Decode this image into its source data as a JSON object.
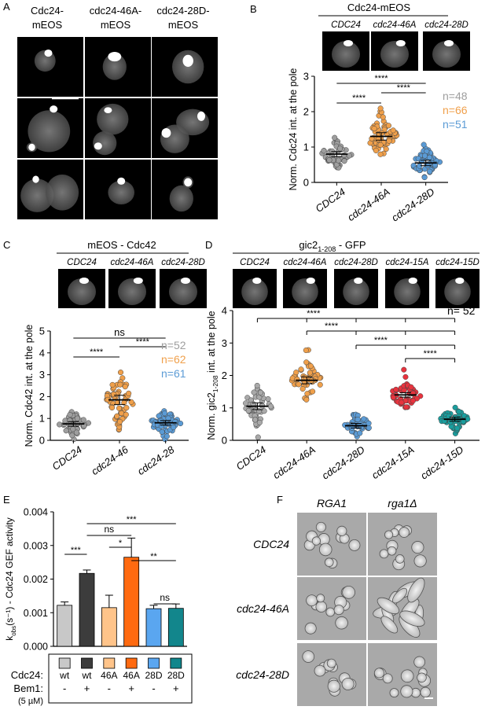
{
  "panels": {
    "A": {
      "letter": "A",
      "columns": [
        "Cdc24-\nmEOS",
        "cdc24-46A-\nmEOS",
        "cdc24-28D-\nmEOS"
      ]
    },
    "B": {
      "letter": "B",
      "header": "Cdc24-mEOS",
      "thumb_labels": [
        "CDC24",
        "cdc24-46A",
        "cdc24-28D"
      ],
      "n_labels": [
        "n=48",
        "n=66",
        "n=51"
      ],
      "sig": [
        "****",
        "****",
        "****"
      ]
    },
    "C": {
      "letter": "C",
      "header": "mEOS - Cdc42",
      "thumb_labels": [
        "CDC24",
        "cdc24-46A",
        "cdc24-28D"
      ],
      "n_labels": [
        "n=52",
        "n=62",
        "n=61"
      ],
      "sig": [
        "ns",
        "****",
        "****"
      ]
    },
    "D": {
      "letter": "D",
      "header": "gic2",
      "header_sub": "1-208",
      "header_tail": " - GFP",
      "thumb_labels": [
        "CDC24",
        "cdc24-46A",
        "cdc24-28D",
        "cdc24-15A",
        "cdc24-15D"
      ],
      "n_label": "n= 52",
      "sig": [
        "****",
        "****",
        "****",
        "****"
      ]
    },
    "E": {
      "letter": "E",
      "sig": [
        "***",
        "ns",
        "*",
        "***",
        "**",
        "ns"
      ],
      "table": {
        "row1_label": "Cdc24:",
        "row2_label": "Bem1:",
        "row3_label": "(5 µM)",
        "cdc24": [
          "wt",
          "wt",
          "46A",
          "46A",
          "28D",
          "28D"
        ],
        "bem1": [
          "-",
          "+",
          "-",
          "+",
          "-",
          "+"
        ]
      }
    },
    "F": {
      "letter": "F",
      "col_labels": [
        "RGA1",
        "rga1Δ"
      ],
      "row_labels": [
        "CDC24",
        "cdc24-46A",
        "cdc24-28D"
      ]
    }
  },
  "chart_data": [
    {
      "panel": "B",
      "type": "scatter",
      "ylabel": "Norm. Cdc24 int. at the pole",
      "ylim": [
        0,
        3
      ],
      "yticks": [
        0,
        1,
        2,
        3
      ],
      "categories": [
        "CDC24",
        "cdc24-46A",
        "cdc24-28D"
      ],
      "series": [
        {
          "n": 48,
          "mean": 0.8,
          "sd": 0.2,
          "color": "#9e9e9e"
        },
        {
          "n": 66,
          "mean": 1.3,
          "sd": 0.3,
          "color": "#f0a04b"
        },
        {
          "n": 51,
          "mean": 0.55,
          "sd": 0.22,
          "color": "#5b9bd5"
        }
      ]
    },
    {
      "panel": "C",
      "type": "scatter",
      "ylabel": "Norm. Cdc42 int. at the pole",
      "ylim": [
        0,
        5
      ],
      "yticks": [
        0,
        1,
        2,
        3,
        4,
        5
      ],
      "categories": [
        "CDC24",
        "cdc24-46",
        "cdc24-28"
      ],
      "series": [
        {
          "n": 52,
          "mean": 0.75,
          "sd": 0.3,
          "color": "#9e9e9e"
        },
        {
          "n": 62,
          "mean": 1.85,
          "sd": 0.6,
          "color": "#f0a04b"
        },
        {
          "n": 61,
          "mean": 0.8,
          "sd": 0.3,
          "color": "#5b9bd5"
        }
      ]
    },
    {
      "panel": "D",
      "type": "scatter",
      "ylabel": "Norm. gic2",
      "ylabel_sub": "1-208",
      "ylabel_tail": " int. at the pole",
      "ylim": [
        0,
        4
      ],
      "yticks": [
        0,
        1,
        2,
        3,
        4
      ],
      "categories": [
        "CDC24",
        "cdc24-46A",
        "cdc24-28D",
        "cdc24-15A",
        "cdc24-15D"
      ],
      "series": [
        {
          "n": 52,
          "mean": 1.05,
          "sd": 0.3,
          "color": "#a9a9a9"
        },
        {
          "n": 52,
          "mean": 1.85,
          "sd": 0.3,
          "color": "#f0a04b"
        },
        {
          "n": 52,
          "mean": 0.45,
          "sd": 0.2,
          "color": "#5b9bd5"
        },
        {
          "n": 52,
          "mean": 1.4,
          "sd": 0.2,
          "color": "#e8333e"
        },
        {
          "n": 52,
          "mean": 0.65,
          "sd": 0.18,
          "color": "#1a9e9e"
        }
      ]
    },
    {
      "panel": "E",
      "type": "bar",
      "ylabel": "k",
      "ylabel_sub": "obs",
      "ylabel_tail": "(s⁻¹) - Cdc24 GEF activity",
      "ylim": [
        0,
        0.004
      ],
      "yticks": [
        "0.000",
        "0.001",
        "0.002",
        "0.003",
        "0.004"
      ],
      "values": [
        0.00122,
        0.00217,
        0.00115,
        0.00265,
        0.00112,
        0.00113
      ],
      "errors": [
        0.0001,
        0.0001,
        0.00037,
        0.00057,
        0.0001,
        0.00013
      ],
      "colors": [
        "#c8c8c8",
        "#3c3c3c",
        "#ffc48a",
        "#ff6a10",
        "#5aa6f0",
        "#12868c"
      ]
    }
  ]
}
